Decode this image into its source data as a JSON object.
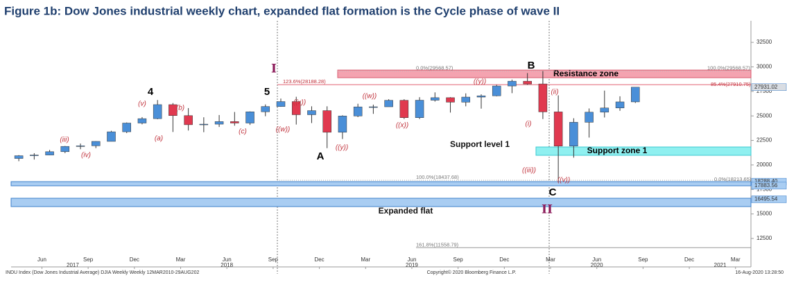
{
  "chart_data": {
    "type": "candlestick",
    "title": "Figure 1b: Dow Jones industrial weekly chart, expanded flat formation is the Cycle phase of wave II",
    "footer_left": "INDU Index (Dow Jones Industrial Average) DJIA Weekly  Weekly 12MAR2010-29AUG202",
    "footer_center": "Copyright© 2020 Bloomberg Finance L.P.",
    "footer_right": "16-Aug-2020 13:28:50",
    "up_color": "#4a8fd8",
    "down_color": "#e0394f",
    "x": [
      "2017-04",
      "2017-05",
      "2017-06",
      "2017-07",
      "2017-08",
      "2017-09",
      "2017-10",
      "2017-11",
      "2017-12",
      "2018-01",
      "2018-02",
      "2018-03",
      "2018-04",
      "2018-05",
      "2018-06",
      "2018-07",
      "2018-08",
      "2018-09",
      "2018-10",
      "2018-11",
      "2018-12",
      "2019-01",
      "2019-02",
      "2019-03",
      "2019-04",
      "2019-05",
      "2019-06",
      "2019-07",
      "2019-08",
      "2019-09",
      "2019-10",
      "2019-11",
      "2019-12",
      "2020-01",
      "2020-02",
      "2020-03",
      "2020-04",
      "2020-05",
      "2020-06",
      "2020-07",
      "2020-08"
    ],
    "open": [
      20660,
      20940,
      21010,
      21350,
      21890,
      21950,
      22400,
      23380,
      24270,
      24720,
      26150,
      25030,
      24100,
      24160,
      24420,
      24270,
      25420,
      25960,
      26460,
      25120,
      25540,
      23330,
      24990,
      25920,
      25930,
      26590,
      24820,
      26600,
      26860,
      26400,
      26920,
      27050,
      28050,
      28540,
      28260,
      25410,
      21920,
      24350,
      25380,
      25810,
      26430
    ],
    "high": [
      21000,
      21200,
      21530,
      21930,
      22180,
      22420,
      23480,
      24330,
      24880,
      26620,
      26310,
      25800,
      24860,
      25090,
      25400,
      25460,
      26170,
      26770,
      26950,
      25980,
      25980,
      25060,
      26240,
      26150,
      26700,
      26700,
      26910,
      27400,
      26910,
      27300,
      27200,
      28170,
      28700,
      29370,
      29570,
      27100,
      24760,
      25760,
      27580,
      27000,
      27930
    ],
    "low": [
      20380,
      20550,
      20990,
      21200,
      21600,
      21710,
      22400,
      23250,
      24140,
      24660,
      23360,
      23510,
      23340,
      23870,
      24000,
      24080,
      24970,
      25930,
      24120,
      24270,
      21710,
      22640,
      24880,
      25210,
      25960,
      24680,
      24680,
      26460,
      25340,
      25980,
      25740,
      27000,
      27320,
      28170,
      24680,
      18210,
      20740,
      22790,
      24840,
      25520,
      26320
    ],
    "close": [
      20940,
      21010,
      21350,
      21890,
      21950,
      22400,
      23380,
      24270,
      24720,
      26150,
      25030,
      24100,
      24160,
      24420,
      24270,
      25420,
      25960,
      26460,
      25120,
      25540,
      23330,
      24990,
      25920,
      25930,
      26590,
      24820,
      26600,
      26860,
      26400,
      26920,
      27050,
      28050,
      28540,
      28260,
      25410,
      21920,
      24350,
      25380,
      25810,
      26430,
      27930
    ],
    "xlim": [
      "2017-04",
      "2021-04"
    ],
    "xticks": [
      {
        "value": "2017-06",
        "label": "Jun"
      },
      {
        "value": "2017-09",
        "label": "Sep"
      },
      {
        "value": "2017-12",
        "label": "Dec"
      },
      {
        "value": "2018-03",
        "label": "Mar"
      },
      {
        "value": "2018-06",
        "label": "Jun"
      },
      {
        "value": "2018-09",
        "label": "Sep"
      },
      {
        "value": "2018-12",
        "label": "Dec"
      },
      {
        "value": "2019-03",
        "label": "Mar"
      },
      {
        "value": "2019-06",
        "label": "Jun"
      },
      {
        "value": "2019-09",
        "label": "Sep"
      },
      {
        "value": "2019-12",
        "label": "Dec"
      },
      {
        "value": "2020-03",
        "label": "Mar"
      },
      {
        "value": "2020-06",
        "label": "Jun"
      },
      {
        "value": "2020-09",
        "label": "Sep"
      },
      {
        "value": "2020-12",
        "label": "Dec"
      },
      {
        "value": "2021-03",
        "label": "Mar"
      }
    ],
    "year_labels": [
      {
        "value": "2017-08",
        "label": "2017"
      },
      {
        "value": "2018-06",
        "label": "2018"
      },
      {
        "value": "2019-06",
        "label": "2019"
      },
      {
        "value": "2020-06",
        "label": "2020"
      },
      {
        "value": "2021-02",
        "label": "2021"
      }
    ],
    "ylim": [
      9600,
      34700
    ],
    "yticks": [
      12500,
      15000,
      17500,
      20000,
      22500,
      25000,
      27500,
      30000,
      32500
    ],
    "zones": [
      {
        "name": "Resistance zone",
        "low": 28896,
        "high": 29673,
        "color": "#f4a3b0",
        "edge": "#d85a6e"
      },
      {
        "name": "Support zone 1",
        "low": 20981,
        "high": 21829,
        "color": "#8ff0f0",
        "edge": "#3cc8d0"
      },
      {
        "low": 17872,
        "high": 18296,
        "color": "#a9cdf2",
        "edge": "#3d7fc9"
      },
      {
        "low": 15750,
        "high": 16600,
        "color": "#a9cdf2",
        "edge": "#3d7fc9"
      }
    ],
    "levels": [
      {
        "label": "0.0%(29568.57)",
        "value": 29568.57,
        "color": "#bbbbbb"
      },
      {
        "label": "100.0%(29568.57)",
        "value": 29568.57,
        "color": "#bbbbbb"
      },
      {
        "label": "123.6%(28188.28)",
        "value": 28188.28,
        "color": "#e06070"
      },
      {
        "label": "85.4%(27910.75)",
        "value": 27910.75,
        "color": "#e06070"
      },
      {
        "label": "100.0%(18437.68)",
        "value": 18437.68,
        "color": "#aaaaaa"
      },
      {
        "label": "0.0%(18213.65)",
        "value": 18213.65,
        "color": "#aaaaaa"
      },
      {
        "label": "161.8%(11558.79)",
        "value": 11558.79,
        "color": "#999999"
      }
    ],
    "price_tags": [
      27931.02,
      {
        "value": 18288.4,
        "label": "18288.40"
      },
      17883.56,
      16495.54
    ],
    "annotations": [
      {
        "text": "I",
        "color": "#8b1a5a",
        "style": "big"
      },
      {
        "text": "II",
        "color": "#8b1a5a",
        "style": "big"
      },
      {
        "text": "B",
        "color": "#000000",
        "style": "wave"
      },
      {
        "text": "C",
        "color": "#000000",
        "style": "wave"
      },
      {
        "text": "A",
        "color": "#000000",
        "style": "wave"
      },
      {
        "text": "4",
        "color": "#000000",
        "style": "wave"
      },
      {
        "text": "5",
        "color": "#000000",
        "style": "wave"
      },
      {
        "text": "(iii)",
        "color": "#c0303a",
        "style": "sub"
      },
      {
        "text": "(iv)",
        "color": "#c0303a",
        "style": "sub"
      },
      {
        "text": "(v)",
        "color": "#c0303a",
        "style": "sub"
      },
      {
        "text": "(a)",
        "color": "#c0303a",
        "style": "sub"
      },
      {
        "text": "(b)",
        "color": "#c0303a",
        "style": "sub"
      },
      {
        "text": "(c)",
        "color": "#c0303a",
        "style": "sub"
      },
      {
        "text": "((w))",
        "color": "#c0303a",
        "style": "sub"
      },
      {
        "text": "((x))",
        "color": "#c0303a",
        "style": "sub"
      },
      {
        "text": "((y))",
        "color": "#c0303a",
        "style": "sub"
      },
      {
        "text": "((w))",
        "color": "#c0303a",
        "style": "sub"
      },
      {
        "text": "((x))",
        "color": "#c0303a",
        "style": "sub"
      },
      {
        "text": "((y))",
        "color": "#c0303a",
        "style": "sub"
      },
      {
        "text": "(i)",
        "color": "#c0303a",
        "style": "sub"
      },
      {
        "text": "(ii)",
        "color": "#c0303a",
        "style": "sub"
      },
      {
        "text": "((iii))",
        "color": "#c0303a",
        "style": "sub"
      },
      {
        "text": "((v))",
        "color": "#c0303a",
        "style": "sub"
      },
      {
        "text": "Support level 1",
        "color": "#111111",
        "style": "note"
      },
      {
        "text": "Expanded flat",
        "color": "#111111",
        "style": "note"
      }
    ]
  }
}
